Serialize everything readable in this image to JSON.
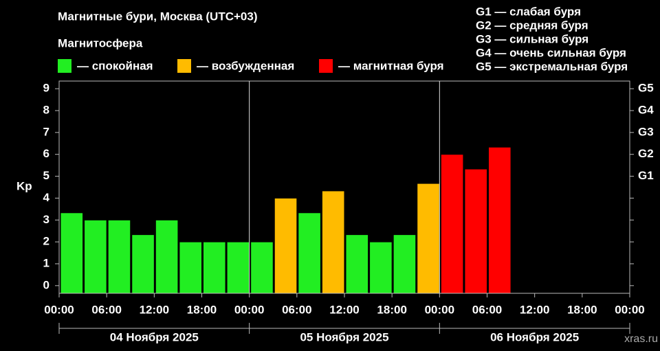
{
  "chart_data": {
    "type": "bar",
    "title": "Магнитные бури, Москва (UTC+03)",
    "legend_title": "Магнитосфера",
    "legend": [
      {
        "label": "— спокойная",
        "color": "#22ee22"
      },
      {
        "label": "— возбужденная",
        "color": "#ffbb00"
      },
      {
        "label": "— магнитная буря",
        "color": "#ff0000"
      }
    ],
    "storm_levels": [
      "G1 — слабая буря",
      "G2 — средняя буря",
      "G3 — сильная буря",
      "G4 — очень сильная буря",
      "G5 — экстремальная буря"
    ],
    "ylabel": "Kp",
    "x": [
      0,
      3,
      6,
      9,
      12,
      15,
      18,
      21,
      24,
      27,
      30,
      33,
      36,
      39,
      42,
      45,
      48,
      51,
      54
    ],
    "values": [
      3.33,
      3,
      3,
      2.33,
      3,
      2,
      2,
      2,
      2,
      4,
      3.33,
      4.33,
      2.33,
      2,
      2.33,
      4.67,
      6,
      5.33,
      6.33
    ],
    "colors": [
      "#22ee22",
      "#22ee22",
      "#22ee22",
      "#22ee22",
      "#22ee22",
      "#22ee22",
      "#22ee22",
      "#22ee22",
      "#22ee22",
      "#ffbb00",
      "#22ee22",
      "#ffbb00",
      "#22ee22",
      "#22ee22",
      "#22ee22",
      "#ffbb00",
      "#ff0000",
      "#ff0000",
      "#ff0000"
    ],
    "bar_hours": 3,
    "xlim": [
      0,
      72
    ],
    "xticks": [
      {
        "value": 0,
        "label": "00:00"
      },
      {
        "value": 6,
        "label": "06:00"
      },
      {
        "value": 12,
        "label": "12:00"
      },
      {
        "value": 18,
        "label": "18:00"
      },
      {
        "value": 24,
        "label": "00:00"
      },
      {
        "value": 30,
        "label": "06:00"
      },
      {
        "value": 36,
        "label": "12:00"
      },
      {
        "value": 42,
        "label": "18:00"
      },
      {
        "value": 48,
        "label": "00:00"
      },
      {
        "value": 54,
        "label": "06:00"
      },
      {
        "value": 60,
        "label": "12:00"
      },
      {
        "value": 66,
        "label": "18:00"
      },
      {
        "value": 72,
        "label": "00:00"
      }
    ],
    "days": [
      {
        "label": "04 Ноября 2025",
        "start": 0,
        "end": 24
      },
      {
        "label": "05 Ноября 2025",
        "start": 24,
        "end": 48
      },
      {
        "label": "06 Ноября 2025",
        "start": 48,
        "end": 72
      }
    ],
    "ylim": [
      -0.35,
      9.35
    ],
    "yticks": [
      0,
      1,
      2,
      3,
      4,
      5,
      6,
      7,
      8,
      9
    ],
    "y2ticks": [
      {
        "value": 5,
        "label": "G1"
      },
      {
        "value": 6,
        "label": "G2"
      },
      {
        "value": 7,
        "label": "G3"
      },
      {
        "value": 8,
        "label": "G4"
      },
      {
        "value": 9,
        "label": "G5"
      }
    ],
    "watermark": "xras.ru"
  }
}
